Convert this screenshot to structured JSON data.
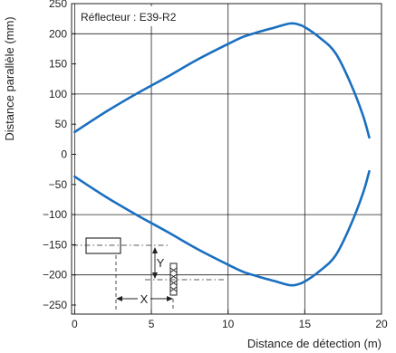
{
  "chart_data": {
    "type": "line",
    "annotation": "Réflecteur : E39-R2",
    "xlabel": "Distance de détection (m)",
    "ylabel": "Distance parallèle (mm)",
    "xlim": [
      -0.2,
      20
    ],
    "ylim": [
      -265,
      250
    ],
    "xticks": [
      0,
      5,
      10,
      15,
      20
    ],
    "yticks": [
      250,
      200,
      150,
      100,
      50,
      0,
      -50,
      -100,
      -150,
      -200,
      -250
    ],
    "grid": true,
    "series": [
      {
        "color": "#1a6fc0",
        "x": [
          0,
          2,
          4,
          6,
          8,
          10,
          11,
          12,
          13,
          14,
          14.5,
          15,
          16,
          17,
          18,
          18.8,
          19.2
        ],
        "y": [
          37,
          70,
          100,
          128,
          157,
          183,
          195,
          203,
          210,
          217,
          216,
          211,
          193,
          168,
          117,
          64,
          28
        ]
      },
      {
        "color": "#1a6fc0",
        "x": [
          0,
          2,
          4,
          6,
          8,
          10,
          11,
          12,
          13,
          14,
          14.5,
          15,
          16,
          17,
          18,
          18.8,
          19.2
        ],
        "y": [
          -37,
          -70,
          -100,
          -128,
          -157,
          -183,
          -195,
          -203,
          -210,
          -217,
          -216,
          -211,
          -193,
          -168,
          -117,
          -64,
          -28
        ]
      }
    ],
    "inset_labels": {
      "x": "X",
      "y": "Y"
    }
  }
}
